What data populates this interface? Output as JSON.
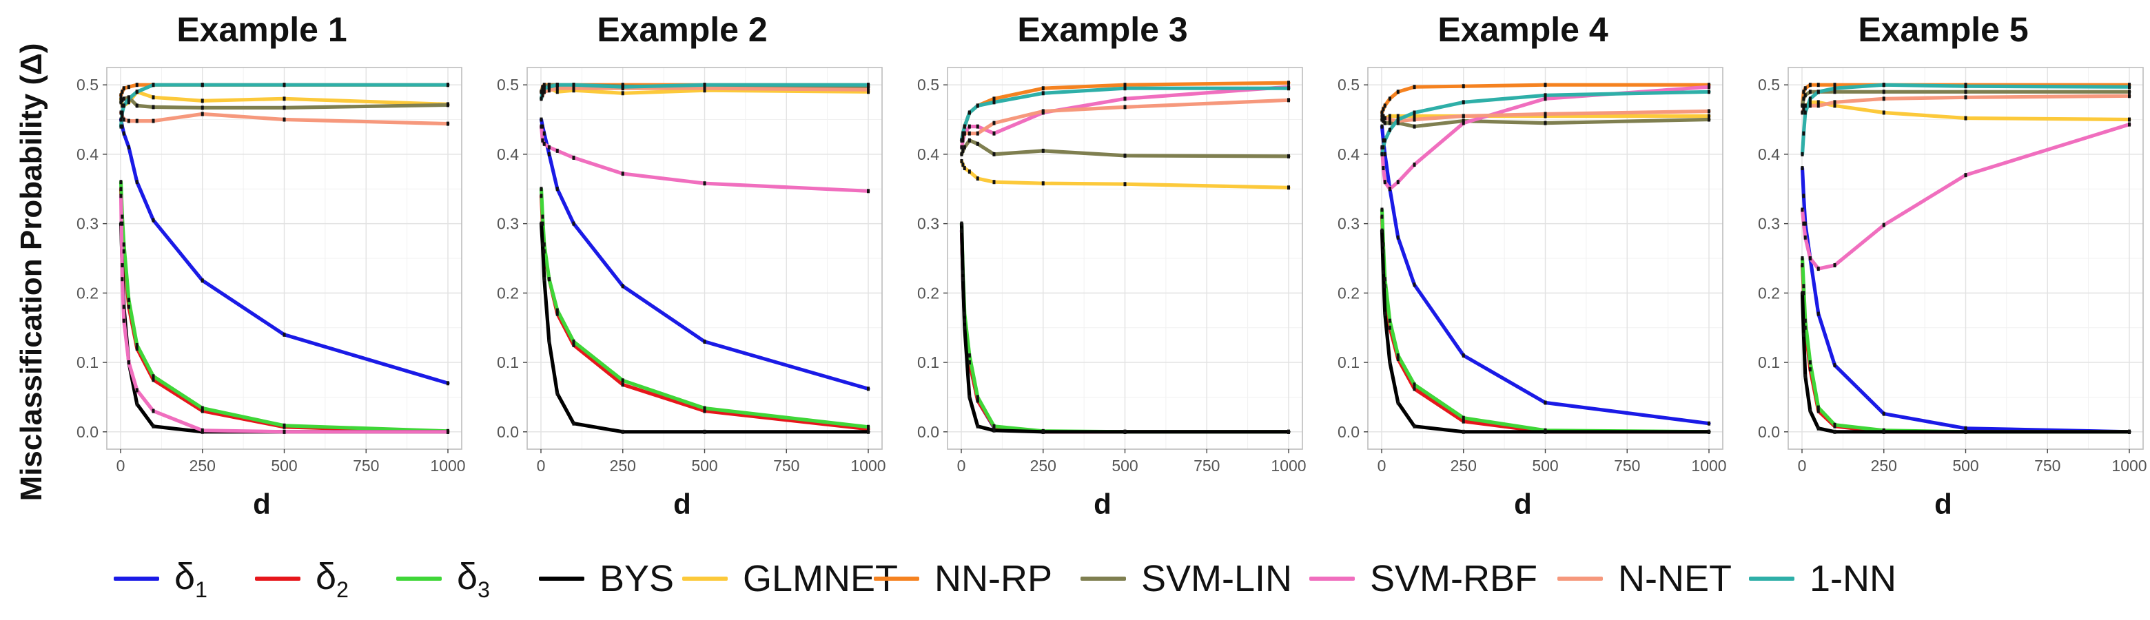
{
  "ylabel": "Misclassification  Probability (Δ)",
  "xlabel": "d",
  "colors": {
    "delta1": "#1a1ae6",
    "delta2": "#e6161b",
    "delta3": "#3fd638",
    "bys": "#000000",
    "glmnet": "#fcc93a",
    "nnrp": "#f58220",
    "svmlin": "#7f7f50",
    "svmrbf": "#f06ebe",
    "nnet": "#f6987c",
    "onenn": "#2eafa8"
  },
  "legend": [
    {
      "key": "delta1",
      "label": "δ",
      "sub": "1"
    },
    {
      "key": "delta2",
      "label": "δ",
      "sub": "2"
    },
    {
      "key": "delta3",
      "label": "δ",
      "sub": "3"
    },
    {
      "key": "bys",
      "label": "BYS",
      "sub": ""
    },
    {
      "key": "glmnet",
      "label": "GLMNET",
      "sub": ""
    },
    {
      "key": "nnrp",
      "label": "NN-RP",
      "sub": ""
    },
    {
      "key": "svmlin",
      "label": "SVM-LIN",
      "sub": ""
    },
    {
      "key": "svmrbf",
      "label": "SVM-RBF",
      "sub": ""
    },
    {
      "key": "nnet",
      "label": "N-NET",
      "sub": ""
    },
    {
      "key": "onenn",
      "label": "1-NN",
      "sub": ""
    }
  ],
  "chart_data": [
    {
      "type": "line",
      "title": "Example 1",
      "xlabel": "d",
      "ylabel": "Misclassification  Probability (Δ)",
      "x": [
        1,
        5,
        10,
        25,
        50,
        100,
        250,
        500,
        1000
      ],
      "xlim": [
        0,
        1000
      ],
      "ylim": [
        0,
        0.5
      ],
      "xticks": [
        0,
        250,
        500,
        750,
        1000
      ],
      "yticks": [
        0.0,
        0.1,
        0.2,
        0.3,
        0.4,
        0.5
      ],
      "grid": true,
      "series": [
        {
          "name": "δ1",
          "key": "delta1",
          "values": [
            0.45,
            0.44,
            0.43,
            0.41,
            0.36,
            0.305,
            0.218,
            0.14,
            0.07
          ]
        },
        {
          "name": "δ2",
          "key": "delta2",
          "values": [
            0.35,
            0.3,
            0.26,
            0.18,
            0.12,
            0.075,
            0.03,
            0.007,
            0.0
          ]
        },
        {
          "name": "δ3",
          "key": "delta3",
          "values": [
            0.36,
            0.31,
            0.27,
            0.19,
            0.125,
            0.08,
            0.034,
            0.009,
            0.001
          ]
        },
        {
          "name": "BYS",
          "key": "bys",
          "values": [
            0.3,
            0.24,
            0.18,
            0.1,
            0.04,
            0.008,
            0.0,
            0.0,
            0.0
          ]
        },
        {
          "name": "GLMNET",
          "key": "glmnet",
          "values": [
            0.48,
            0.47,
            0.47,
            0.475,
            0.49,
            0.482,
            0.477,
            0.48,
            0.472
          ]
        },
        {
          "name": "NN-RP",
          "key": "nnrp",
          "values": [
            0.485,
            0.49,
            0.495,
            0.497,
            0.5,
            0.5,
            0.5,
            0.5,
            0.5
          ]
        },
        {
          "name": "SVM-LIN",
          "key": "svmlin",
          "values": [
            0.475,
            0.478,
            0.48,
            0.482,
            0.47,
            0.468,
            0.467,
            0.467,
            0.471
          ]
        },
        {
          "name": "SVM-RBF",
          "key": "svmrbf",
          "values": [
            0.34,
            0.22,
            0.16,
            0.1,
            0.06,
            0.03,
            0.002,
            0.0,
            0.0
          ]
        },
        {
          "name": "N-NET",
          "key": "nnet",
          "values": [
            0.46,
            0.455,
            0.45,
            0.448,
            0.448,
            0.448,
            0.458,
            0.45,
            0.444
          ]
        },
        {
          "name": "1-NN",
          "key": "onenn",
          "values": [
            0.44,
            0.46,
            0.47,
            0.48,
            0.49,
            0.5,
            0.5,
            0.5,
            0.5
          ]
        }
      ]
    },
    {
      "type": "line",
      "title": "Example 2",
      "xlabel": "d",
      "ylabel": "Misclassification  Probability (Δ)",
      "x": [
        1,
        5,
        10,
        25,
        50,
        100,
        250,
        500,
        1000
      ],
      "xlim": [
        0,
        1000
      ],
      "ylim": [
        0,
        0.5
      ],
      "xticks": [
        0,
        250,
        500,
        750,
        1000
      ],
      "yticks": [
        0.0,
        0.1,
        0.2,
        0.3,
        0.4,
        0.5
      ],
      "grid": true,
      "series": [
        {
          "name": "δ1",
          "key": "delta1",
          "values": [
            0.45,
            0.44,
            0.43,
            0.4,
            0.35,
            0.3,
            0.21,
            0.13,
            0.062
          ]
        },
        {
          "name": "δ2",
          "key": "delta2",
          "values": [
            0.34,
            0.3,
            0.26,
            0.22,
            0.17,
            0.125,
            0.068,
            0.03,
            0.004
          ]
        },
        {
          "name": "δ3",
          "key": "delta3",
          "values": [
            0.35,
            0.31,
            0.27,
            0.22,
            0.175,
            0.13,
            0.074,
            0.034,
            0.007
          ]
        },
        {
          "name": "BYS",
          "key": "bys",
          "values": [
            0.3,
            0.27,
            0.22,
            0.13,
            0.055,
            0.012,
            0.0,
            0.0,
            0.0
          ]
        },
        {
          "name": "GLMNET",
          "key": "glmnet",
          "values": [
            0.49,
            0.492,
            0.49,
            0.495,
            0.49,
            0.492,
            0.488,
            0.492,
            0.49
          ]
        },
        {
          "name": "NN-RP",
          "key": "nnrp",
          "values": [
            0.49,
            0.497,
            0.5,
            0.5,
            0.5,
            0.5,
            0.5,
            0.5,
            0.5
          ]
        },
        {
          "name": "SVM-LIN",
          "key": "svmlin",
          "values": [
            0.49,
            0.495,
            0.497,
            0.5,
            0.5,
            0.5,
            0.498,
            0.497,
            0.497
          ]
        },
        {
          "name": "SVM-RBF",
          "key": "svmrbf",
          "values": [
            0.44,
            0.42,
            0.415,
            0.41,
            0.405,
            0.395,
            0.372,
            0.358,
            0.347
          ]
        },
        {
          "name": "N-NET",
          "key": "nnet",
          "values": [
            0.48,
            0.485,
            0.49,
            0.492,
            0.495,
            0.495,
            0.495,
            0.495,
            0.493
          ]
        },
        {
          "name": "1-NN",
          "key": "onenn",
          "values": [
            0.48,
            0.49,
            0.495,
            0.497,
            0.5,
            0.5,
            0.497,
            0.5,
            0.5
          ]
        }
      ]
    },
    {
      "type": "line",
      "title": "Example 3",
      "xlabel": "d",
      "ylabel": "Misclassification  Probability (Δ)",
      "x": [
        1,
        5,
        10,
        25,
        50,
        100,
        250,
        500,
        1000
      ],
      "xlim": [
        0,
        1000
      ],
      "ylim": [
        0,
        0.5
      ],
      "xticks": [
        0,
        250,
        500,
        750,
        1000
      ],
      "yticks": [
        0.0,
        0.1,
        0.2,
        0.3,
        0.4,
        0.5
      ],
      "grid": true,
      "series": [
        {
          "name": "δ1",
          "key": "delta1",
          "values": [
            0.29,
            0.22,
            0.16,
            0.1,
            0.045,
            0.006,
            0.0,
            0.0,
            0.0
          ]
        },
        {
          "name": "δ2",
          "key": "delta2",
          "values": [
            0.29,
            0.22,
            0.16,
            0.1,
            0.045,
            0.007,
            0.0,
            0.0,
            0.0
          ]
        },
        {
          "name": "δ3",
          "key": "delta3",
          "values": [
            0.3,
            0.23,
            0.17,
            0.11,
            0.05,
            0.008,
            0.001,
            0.0,
            0.0
          ]
        },
        {
          "name": "BYS",
          "key": "bys",
          "values": [
            0.3,
            0.22,
            0.15,
            0.05,
            0.008,
            0.002,
            0.0,
            0.0,
            0.0
          ]
        },
        {
          "name": "GLMNET",
          "key": "glmnet",
          "values": [
            0.39,
            0.385,
            0.38,
            0.375,
            0.365,
            0.36,
            0.358,
            0.357,
            0.352
          ]
        },
        {
          "name": "NN-RP",
          "key": "nnrp",
          "values": [
            0.42,
            0.43,
            0.44,
            0.46,
            0.47,
            0.48,
            0.495,
            0.5,
            0.503
          ]
        },
        {
          "name": "SVM-LIN",
          "key": "svmlin",
          "values": [
            0.4,
            0.405,
            0.41,
            0.42,
            0.415,
            0.4,
            0.405,
            0.398,
            0.397
          ]
        },
        {
          "name": "SVM-RBF",
          "key": "svmrbf",
          "values": [
            0.41,
            0.42,
            0.43,
            0.44,
            0.44,
            0.43,
            0.46,
            0.48,
            0.497
          ]
        },
        {
          "name": "N-NET",
          "key": "nnet",
          "values": [
            0.42,
            0.425,
            0.43,
            0.43,
            0.43,
            0.445,
            0.462,
            0.468,
            0.478
          ]
        },
        {
          "name": "1-NN",
          "key": "onenn",
          "values": [
            0.42,
            0.43,
            0.44,
            0.46,
            0.47,
            0.475,
            0.488,
            0.495,
            0.495
          ]
        }
      ]
    },
    {
      "type": "line",
      "title": "Example 4",
      "xlabel": "d",
      "ylabel": "Misclassification  Probability (Δ)",
      "x": [
        1,
        5,
        10,
        25,
        50,
        100,
        250,
        500,
        1000
      ],
      "xlim": [
        0,
        1000
      ],
      "ylim": [
        0,
        0.5
      ],
      "xticks": [
        0,
        250,
        500,
        750,
        1000
      ],
      "yticks": [
        0.0,
        0.1,
        0.2,
        0.3,
        0.4,
        0.5
      ],
      "grid": true,
      "series": [
        {
          "name": "δ1",
          "key": "delta1",
          "values": [
            0.44,
            0.42,
            0.4,
            0.35,
            0.28,
            0.212,
            0.11,
            0.042,
            0.012
          ]
        },
        {
          "name": "δ2",
          "key": "delta2",
          "values": [
            0.31,
            0.26,
            0.21,
            0.15,
            0.105,
            0.062,
            0.015,
            0.0,
            0.0
          ]
        },
        {
          "name": "δ3",
          "key": "delta3",
          "values": [
            0.32,
            0.27,
            0.22,
            0.16,
            0.11,
            0.068,
            0.02,
            0.002,
            0.0
          ]
        },
        {
          "name": "BYS",
          "key": "bys",
          "values": [
            0.29,
            0.23,
            0.17,
            0.1,
            0.042,
            0.008,
            0.0,
            0.0,
            0.0
          ]
        },
        {
          "name": "GLMNET",
          "key": "glmnet",
          "values": [
            0.45,
            0.45,
            0.452,
            0.455,
            0.455,
            0.455,
            0.455,
            0.455,
            0.455
          ]
        },
        {
          "name": "NN-RP",
          "key": "nnrp",
          "values": [
            0.46,
            0.465,
            0.47,
            0.48,
            0.49,
            0.497,
            0.498,
            0.5,
            0.5
          ]
        },
        {
          "name": "SVM-LIN",
          "key": "svmlin",
          "values": [
            0.45,
            0.448,
            0.445,
            0.445,
            0.445,
            0.44,
            0.448,
            0.445,
            0.45
          ]
        },
        {
          "name": "SVM-RBF",
          "key": "svmrbf",
          "values": [
            0.41,
            0.38,
            0.36,
            0.35,
            0.36,
            0.385,
            0.445,
            0.48,
            0.497
          ]
        },
        {
          "name": "N-NET",
          "key": "nnet",
          "values": [
            0.455,
            0.455,
            0.452,
            0.45,
            0.448,
            0.45,
            0.455,
            0.458,
            0.462
          ]
        },
        {
          "name": "1-NN",
          "key": "onenn",
          "values": [
            0.4,
            0.41,
            0.42,
            0.435,
            0.45,
            0.46,
            0.475,
            0.485,
            0.49
          ]
        }
      ]
    },
    {
      "type": "line",
      "title": "Example 5",
      "xlabel": "d",
      "ylabel": "Misclassification  Probability (Δ)",
      "x": [
        1,
        5,
        10,
        25,
        50,
        100,
        250,
        500,
        1000
      ],
      "xlim": [
        0,
        1000
      ],
      "ylim": [
        0,
        0.5
      ],
      "xticks": [
        0,
        250,
        500,
        750,
        1000
      ],
      "yticks": [
        0.0,
        0.1,
        0.2,
        0.3,
        0.4,
        0.5
      ],
      "grid": true,
      "series": [
        {
          "name": "δ1",
          "key": "delta1",
          "values": [
            0.38,
            0.34,
            0.3,
            0.25,
            0.17,
            0.096,
            0.026,
            0.005,
            0.0
          ]
        },
        {
          "name": "δ2",
          "key": "delta2",
          "values": [
            0.24,
            0.2,
            0.15,
            0.09,
            0.03,
            0.008,
            0.0,
            0.0,
            0.0
          ]
        },
        {
          "name": "δ3",
          "key": "delta3",
          "values": [
            0.25,
            0.21,
            0.16,
            0.1,
            0.035,
            0.01,
            0.002,
            0.0,
            0.0
          ]
        },
        {
          "name": "BYS",
          "key": "bys",
          "values": [
            0.2,
            0.14,
            0.08,
            0.03,
            0.005,
            0.0,
            0.0,
            0.0,
            0.0
          ]
        },
        {
          "name": "GLMNET",
          "key": "glmnet",
          "values": [
            0.47,
            0.47,
            0.47,
            0.475,
            0.475,
            0.47,
            0.46,
            0.452,
            0.45
          ]
        },
        {
          "name": "NN-RP",
          "key": "nnrp",
          "values": [
            0.47,
            0.49,
            0.495,
            0.5,
            0.5,
            0.5,
            0.5,
            0.5,
            0.5
          ]
        },
        {
          "name": "SVM-LIN",
          "key": "svmlin",
          "values": [
            0.47,
            0.48,
            0.485,
            0.49,
            0.49,
            0.49,
            0.49,
            0.49,
            0.49
          ]
        },
        {
          "name": "SVM-RBF",
          "key": "svmrbf",
          "values": [
            0.32,
            0.3,
            0.28,
            0.25,
            0.235,
            0.24,
            0.298,
            0.37,
            0.443
          ]
        },
        {
          "name": "N-NET",
          "key": "nnet",
          "values": [
            0.46,
            0.465,
            0.47,
            0.47,
            0.47,
            0.475,
            0.48,
            0.482,
            0.484
          ]
        },
        {
          "name": "1-NN",
          "key": "onenn",
          "values": [
            0.4,
            0.43,
            0.46,
            0.48,
            0.49,
            0.495,
            0.5,
            0.498,
            0.497
          ]
        }
      ]
    }
  ]
}
